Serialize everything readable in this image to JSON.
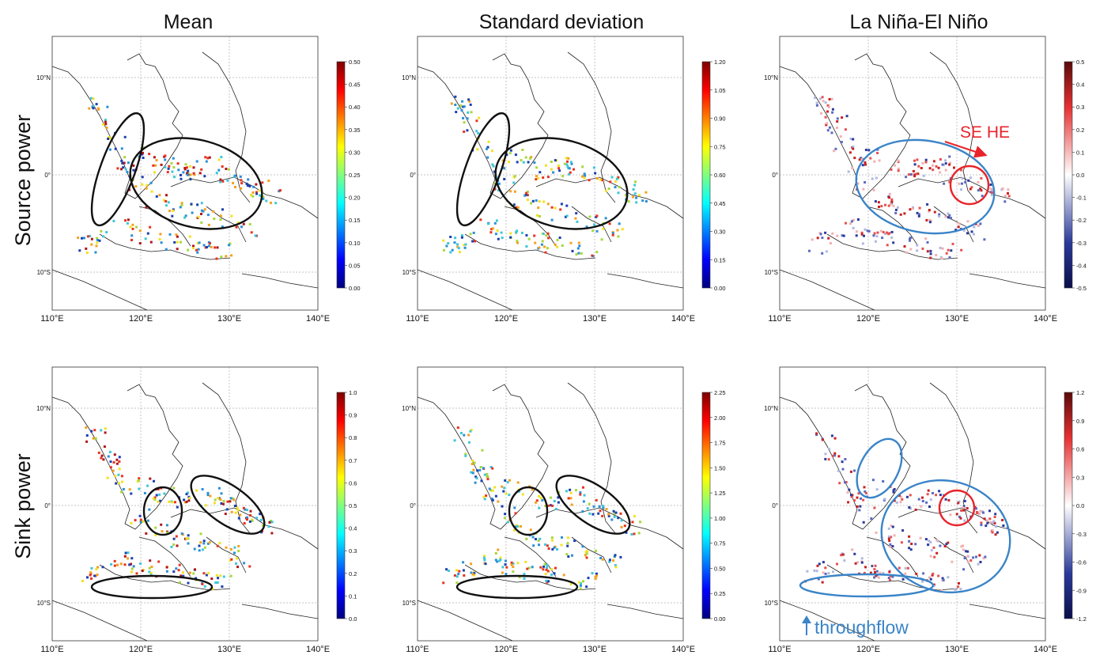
{
  "columns": [
    "Mean",
    "Standard deviation",
    "La Niña-El Niño"
  ],
  "rows": [
    "Source power",
    "Sink power"
  ],
  "lon_ticks": [
    "110°E",
    "120°E",
    "130°E",
    "140°E"
  ],
  "lat_ticks": [
    "10°N",
    "0°",
    "10°S"
  ],
  "colorbars": [
    [
      "0.50",
      "0.45",
      "0.40",
      "0.35",
      "0.30",
      "0.25",
      "0.20",
      "0.15",
      "0.10",
      "0.05",
      "0.00"
    ],
    [
      "1.20",
      "1.05",
      "0.90",
      "0.75",
      "0.60",
      "0.45",
      "0.30",
      "0.15",
      "0.00"
    ],
    [
      "0.5",
      "0.4",
      "0.3",
      "0.2",
      "0.1",
      "0.0",
      "-0.1",
      "-0.2",
      "-0.3",
      "-0.4",
      "-0.5"
    ],
    [
      "1.0",
      "0.9",
      "0.8",
      "0.7",
      "0.6",
      "0.5",
      "0.4",
      "0.3",
      "0.2",
      "0.1",
      "0.0"
    ],
    [
      "2.25",
      "2.00",
      "1.75",
      "1.50",
      "1.25",
      "1.00",
      "0.75",
      "0.50",
      "0.25",
      "0.00"
    ],
    [
      "1.2",
      "0.9",
      "0.6",
      "0.3",
      "0.0",
      "-0.3",
      "-0.6",
      "-0.9",
      "-1.2"
    ]
  ],
  "annotations": {
    "se_he": "SE HE",
    "throughflow": "throughflow"
  },
  "colors": {
    "black_ellipse": "#111111",
    "blue_ellipse": "#3a84c8",
    "red_annotation": "#e8242b"
  }
}
